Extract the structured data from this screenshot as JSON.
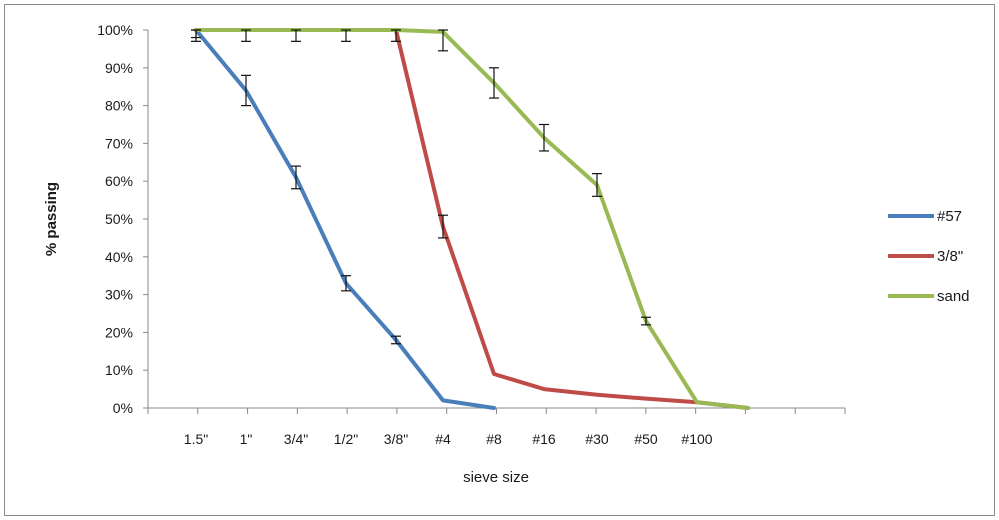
{
  "chart_data": {
    "type": "line",
    "title": "",
    "xlabel": "sieve size",
    "ylabel": "% passing",
    "ylim": [
      0,
      100
    ],
    "yticks": [
      "0%",
      "10%",
      "20%",
      "30%",
      "40%",
      "50%",
      "60%",
      "70%",
      "80%",
      "90%",
      "100%"
    ],
    "ytick_values": [
      0,
      10,
      20,
      30,
      40,
      50,
      60,
      70,
      80,
      90,
      100
    ],
    "x_sieve_labels": [
      "1.5\"",
      "1\"",
      "3/4\"",
      "1/2\"",
      "3/8\"",
      "#4",
      "#8",
      "#16",
      "#30",
      "#50",
      "#100"
    ],
    "x_sieve_mm": [
      37.5,
      25,
      19,
      12.5,
      9.5,
      4.75,
      2.36,
      1.18,
      0.6,
      0.3,
      0.15
    ],
    "grid": false,
    "legend": "right",
    "error_bars": true,
    "series": [
      {
        "name": "#57",
        "color": "#4a7ebb",
        "points": [
          {
            "x": 37.5,
            "y": 100,
            "err": 2
          },
          {
            "x": 25,
            "y": 84,
            "err": 4
          },
          {
            "x": 19,
            "y": 61,
            "err": 3
          },
          {
            "x": 12.5,
            "y": 33,
            "err": 2
          },
          {
            "x": 9.5,
            "y": 18,
            "err": 1
          },
          {
            "x": 4.75,
            "y": 2,
            "err": 0
          },
          {
            "x": 2.36,
            "y": 0,
            "err": 0
          }
        ]
      },
      {
        "name": "3/8\"",
        "color": "#be4b48",
        "points": [
          {
            "x": 9.5,
            "y": 100,
            "err": 3
          },
          {
            "x": 4.75,
            "y": 48,
            "err": 3
          },
          {
            "x": 2.36,
            "y": 9,
            "err": 0
          },
          {
            "x": 1.18,
            "y": 5,
            "err": 0
          },
          {
            "x": 0.6,
            "y": 3.5,
            "err": 0
          },
          {
            "x": 0.3,
            "y": 2.5,
            "err": 0
          },
          {
            "x": 0.15,
            "y": 1.5,
            "err": 0
          },
          {
            "x": 0.075,
            "y": 0,
            "err": 0
          }
        ]
      },
      {
        "name": "sand",
        "color": "#98b954",
        "points": [
          {
            "x": 37.5,
            "y": 100,
            "err": 3
          },
          {
            "x": 25,
            "y": 100,
            "err": 3
          },
          {
            "x": 19,
            "y": 100,
            "err": 3
          },
          {
            "x": 12.5,
            "y": 100,
            "err": 3
          },
          {
            "x": 9.5,
            "y": 100,
            "err": 0
          },
          {
            "x": 4.75,
            "y": 99.5,
            "err": 5
          },
          {
            "x": 2.36,
            "y": 86,
            "err": 4
          },
          {
            "x": 1.18,
            "y": 71.5,
            "err": 3.5
          },
          {
            "x": 0.6,
            "y": 59,
            "err": 3
          },
          {
            "x": 0.3,
            "y": 23,
            "err": 1
          },
          {
            "x": 0.15,
            "y": 1.5,
            "err": 0
          },
          {
            "x": 0.075,
            "y": 0,
            "err": 0
          }
        ]
      }
    ]
  }
}
